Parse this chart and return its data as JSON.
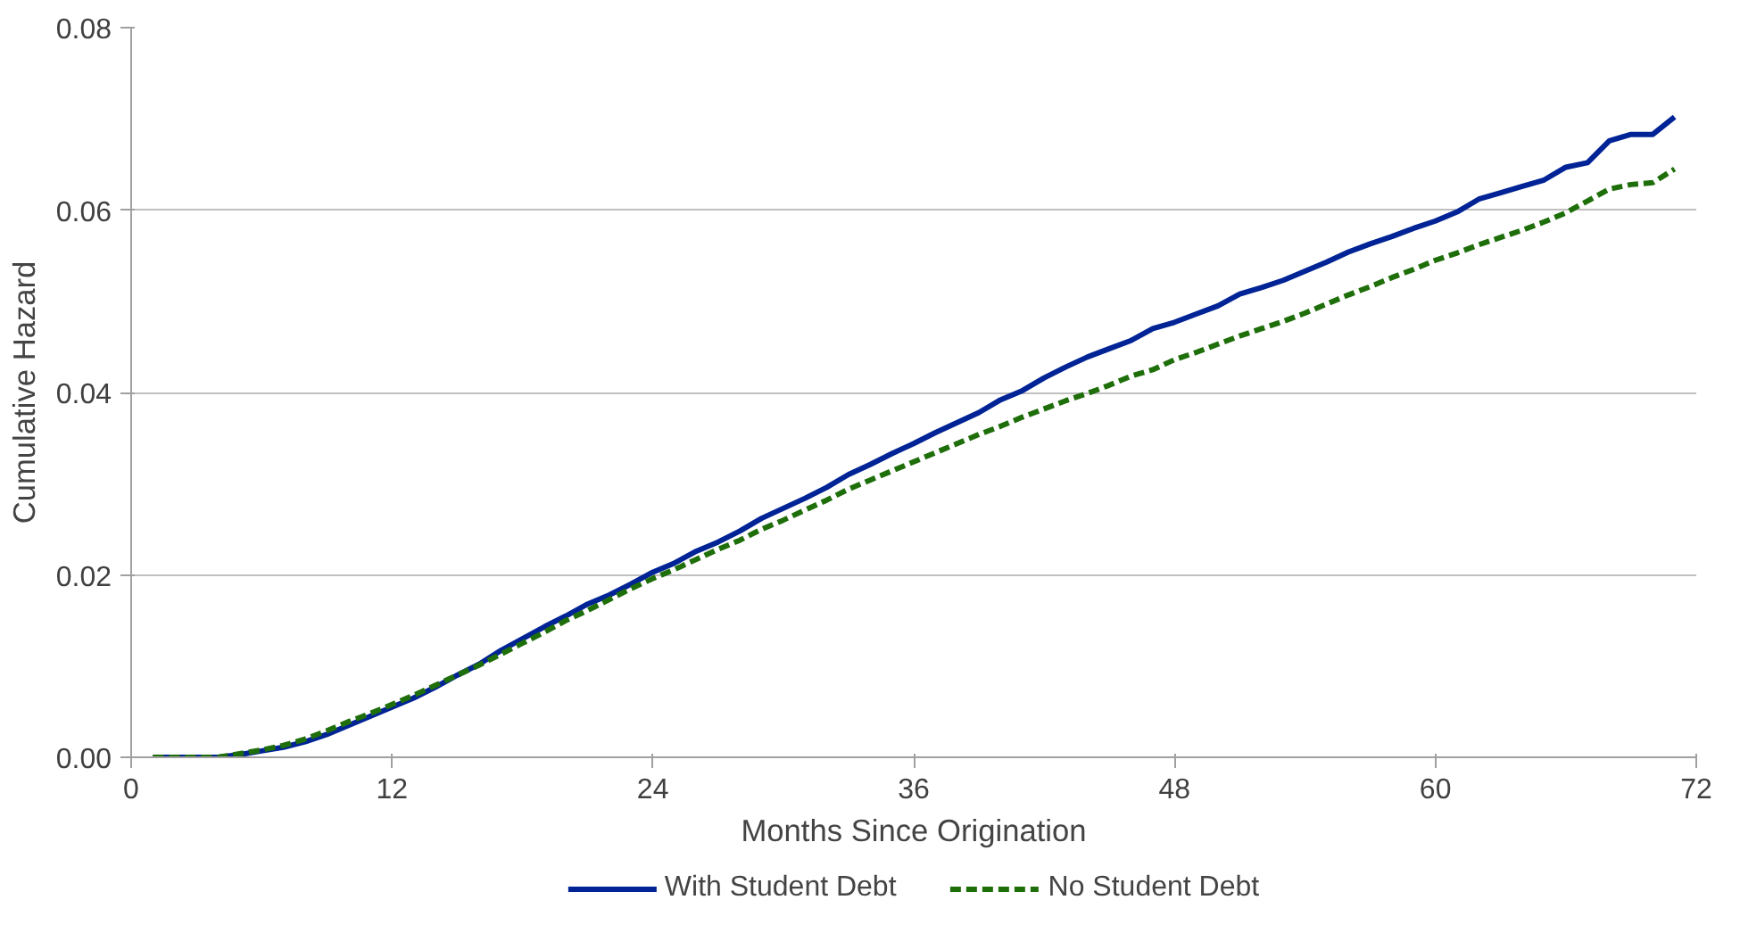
{
  "chart_data": {
    "type": "line",
    "xlabel": "Months Since Origination",
    "ylabel": "Cumulative Hazard",
    "x": [
      1,
      2,
      3,
      4,
      5,
      6,
      7,
      8,
      9,
      10,
      11,
      12,
      13,
      14,
      15,
      16,
      17,
      18,
      19,
      20,
      21,
      22,
      23,
      24,
      25,
      26,
      27,
      28,
      29,
      30,
      31,
      32,
      33,
      34,
      35,
      36,
      37,
      38,
      39,
      40,
      41,
      42,
      43,
      44,
      45,
      46,
      47,
      48,
      49,
      50,
      51,
      52,
      53,
      54,
      55,
      56,
      57,
      58,
      59,
      60,
      61,
      62,
      63,
      64,
      65,
      66,
      67,
      68,
      69,
      70,
      71
    ],
    "series": [
      {
        "name": "With Student Debt",
        "color": "#002395",
        "line_style": "solid",
        "values": [
          0,
          0,
          0,
          0,
          0.0003,
          0.0007,
          0.0011,
          0.0017,
          0.0025,
          0.0035,
          0.0045,
          0.0055,
          0.0065,
          0.0077,
          0.009,
          0.0102,
          0.0117,
          0.013,
          0.0143,
          0.0155,
          0.0168,
          0.0178,
          0.019,
          0.0203,
          0.0213,
          0.0226,
          0.0236,
          0.0248,
          0.0262,
          0.0273,
          0.0284,
          0.0296,
          0.031,
          0.0321,
          0.0333,
          0.0344,
          0.0356,
          0.0367,
          0.0378,
          0.0392,
          0.0402,
          0.0416,
          0.0428,
          0.0439,
          0.0448,
          0.0457,
          0.047,
          0.0477,
          0.0486,
          0.0495,
          0.0508,
          0.0515,
          0.0523,
          0.0533,
          0.0543,
          0.0554,
          0.0563,
          0.0571,
          0.058,
          0.0588,
          0.0598,
          0.0612,
          0.0619,
          0.0626,
          0.0633,
          0.0647,
          0.0652,
          0.0676,
          0.0683,
          0.0683,
          0.0702
        ]
      },
      {
        "name": "No Student Debt",
        "color": "#1e6e0a",
        "line_style": "dashed",
        "values": [
          0,
          0,
          0,
          0,
          0.0004,
          0.0008,
          0.0013,
          0.002,
          0.0029,
          0.0039,
          0.0048,
          0.0058,
          0.0068,
          0.0079,
          0.009,
          0.0101,
          0.0113,
          0.0125,
          0.0137,
          0.015,
          0.0161,
          0.0173,
          0.0185,
          0.0196,
          0.0206,
          0.0217,
          0.0228,
          0.0238,
          0.025,
          0.026,
          0.0271,
          0.0282,
          0.0294,
          0.0304,
          0.0314,
          0.0324,
          0.0334,
          0.0344,
          0.0354,
          0.0363,
          0.0373,
          0.0382,
          0.0391,
          0.0399,
          0.0408,
          0.0418,
          0.0425,
          0.0436,
          0.0444,
          0.0453,
          0.0462,
          0.047,
          0.0478,
          0.0487,
          0.0497,
          0.0507,
          0.0516,
          0.0526,
          0.0535,
          0.0545,
          0.0553,
          0.0562,
          0.057,
          0.0578,
          0.0587,
          0.0597,
          0.061,
          0.0623,
          0.0628,
          0.063,
          0.0645
        ]
      }
    ],
    "xlim": [
      0,
      72
    ],
    "xticks": [
      0,
      12,
      24,
      36,
      48,
      60,
      72
    ],
    "ylim": [
      0,
      0.08
    ],
    "yticks": [
      {
        "value": 0,
        "label": "0.00"
      },
      {
        "value": 0.02,
        "label": "0.02"
      },
      {
        "value": 0.04,
        "label": "0.04"
      },
      {
        "value": 0.06,
        "label": "0.06"
      },
      {
        "value": 0.08,
        "label": "0.08"
      }
    ],
    "grid": "y",
    "legend": "bottom",
    "marker": "none"
  }
}
